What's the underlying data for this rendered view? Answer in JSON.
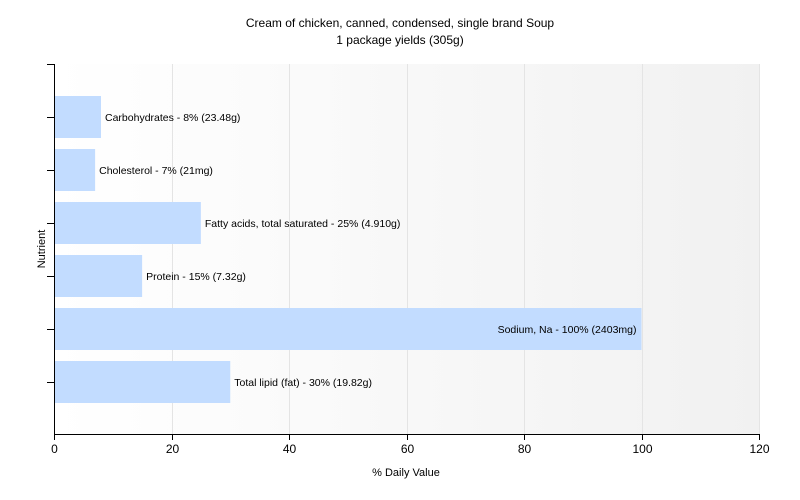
{
  "chart_data": {
    "type": "bar",
    "orientation": "horizontal",
    "title": "Cream of chicken, canned, condensed, single brand Soup",
    "subtitle": "1 package yields (305g)",
    "xlabel": "% Daily Value",
    "ylabel": "Nutrient",
    "xlim": [
      0,
      120
    ],
    "xticks": [
      0,
      20,
      40,
      60,
      80,
      100,
      120
    ],
    "grid": true,
    "legend": "none",
    "bar_color": "#c2dcff",
    "categories": [
      "Carbohydrates",
      "Cholesterol",
      "Fatty acids, total saturated",
      "Protein",
      "Sodium, Na",
      "Total lipid (fat)"
    ],
    "values": [
      8,
      7,
      25,
      15,
      100,
      30
    ],
    "labels": [
      "Carbohydrates - 8% (23.48g)",
      "Cholesterol - 7% (21mg)",
      "Fatty acids, total saturated - 25% (4.910g)",
      "Protein - 15% (7.32g)",
      "Sodium, Na - 100% (2403mg)",
      "Total lipid (fat) - 30% (19.82g)"
    ]
  }
}
